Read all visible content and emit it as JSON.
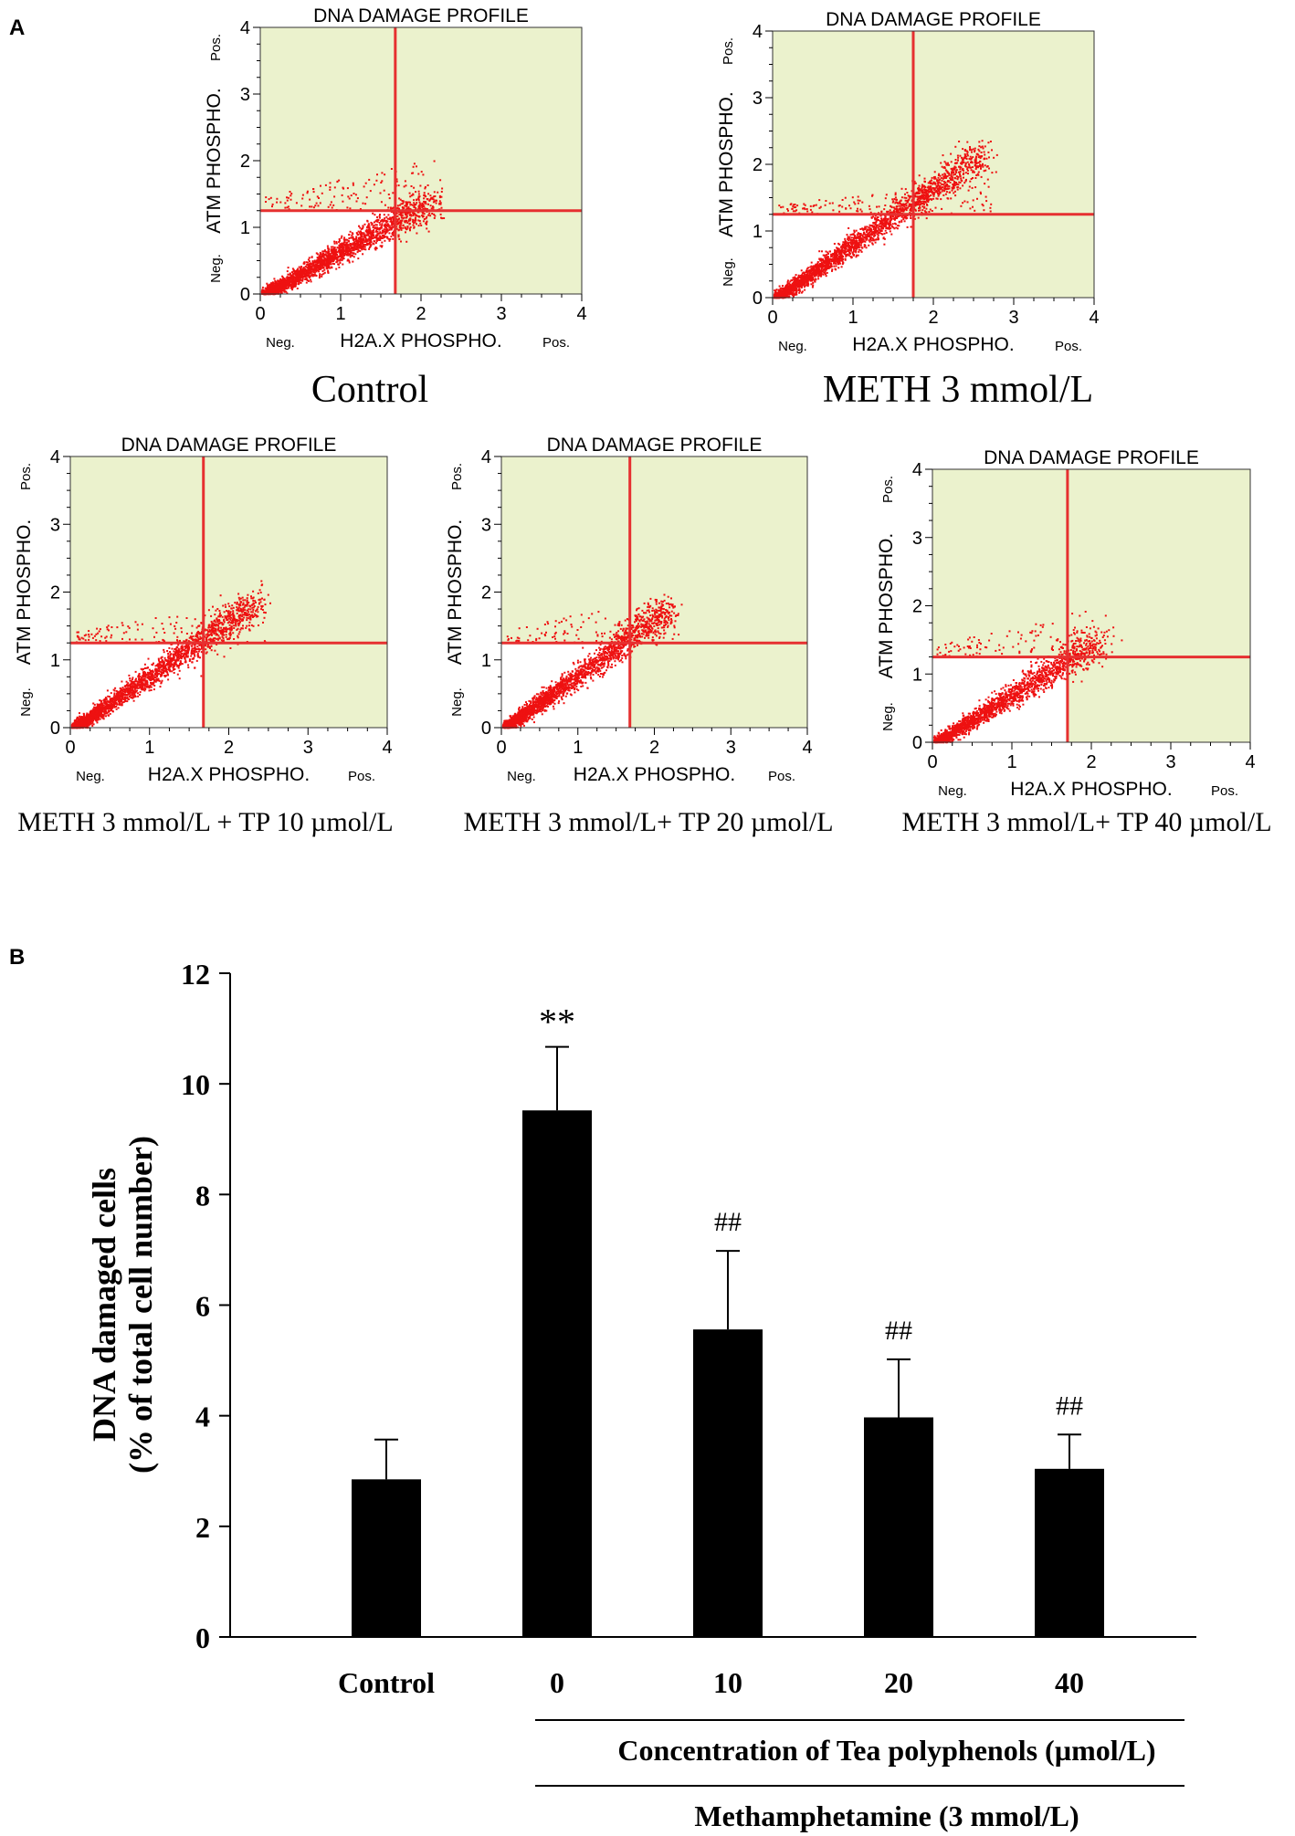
{
  "figure": {
    "panel_a_label": "A",
    "panel_b_label": "B"
  },
  "chart_data": [
    {
      "type": "scatter",
      "panel": "A",
      "title": "DNA DAMAGE PROFILE",
      "condition": "Control",
      "xlabel": "H2A.X PHOSPHO.",
      "ylabel": "ATM PHOSPHO.",
      "x_neg": "Neg.",
      "x_pos": "Pos.",
      "y_neg": "Neg.",
      "y_pos": "Pos.",
      "xlim": [
        0,
        4
      ],
      "ylim": [
        0,
        4
      ],
      "xticks": [
        "0",
        "1",
        "2",
        "3",
        "4"
      ],
      "yticks": [
        "0",
        "1",
        "2",
        "3",
        "4"
      ],
      "gate_x": 1.68,
      "gate_y": 1.25,
      "cloud_end": [
        2.1,
        1.4
      ],
      "upper_scatter": 0.6,
      "points": 2600,
      "colors": {
        "plot_bg": "#ebf2cd",
        "dots": "#ee1111",
        "gate": "#e63030"
      }
    },
    {
      "type": "scatter",
      "panel": "A",
      "title": "DNA DAMAGE PROFILE",
      "condition": "METH 3 mmol/L",
      "xlabel": "H2A.X PHOSPHO.",
      "ylabel": "ATM PHOSPHO.",
      "x_neg": "Neg.",
      "x_pos": "Pos.",
      "y_neg": "Neg.",
      "y_pos": "Pos.",
      "xlim": [
        0,
        4
      ],
      "ylim": [
        0,
        4
      ],
      "xticks": [
        "0",
        "1",
        "2",
        "3",
        "4"
      ],
      "yticks": [
        "0",
        "1",
        "2",
        "3",
        "4"
      ],
      "gate_x": 1.75,
      "gate_y": 1.25,
      "cloud_end": [
        2.55,
        2.15
      ],
      "upper_scatter": 0.4,
      "points": 2800,
      "colors": {
        "plot_bg": "#ebf2cd",
        "dots": "#ee1111",
        "gate": "#e63030"
      }
    },
    {
      "type": "scatter",
      "panel": "A",
      "title": "DNA DAMAGE PROFILE",
      "condition": "METH 3 mmol/L + TP 10 µmol/L",
      "xlabel": "H2A.X PHOSPHO.",
      "ylabel": "ATM PHOSPHO.",
      "x_neg": "Neg.",
      "x_pos": "Pos.",
      "y_neg": "Neg.",
      "y_pos": "Pos.",
      "xlim": [
        0,
        4
      ],
      "ylim": [
        0,
        4
      ],
      "xticks": [
        "0",
        "1",
        "2",
        "3",
        "4"
      ],
      "yticks": [
        "0",
        "1",
        "2",
        "3",
        "4"
      ],
      "gate_x": 1.68,
      "gate_y": 1.25,
      "cloud_end": [
        2.3,
        1.85
      ],
      "upper_scatter": 0.5,
      "points": 2400,
      "colors": {
        "plot_bg": "#ebf2cd",
        "dots": "#ee1111",
        "gate": "#e63030"
      }
    },
    {
      "type": "scatter",
      "panel": "A",
      "title": "DNA DAMAGE PROFILE",
      "condition": "METH 3 mmol/L+ TP 20 µmol/L",
      "xlabel": "H2A.X PHOSPHO.",
      "ylabel": "ATM PHOSPHO.",
      "x_neg": "Neg.",
      "x_pos": "Pos.",
      "y_neg": "Neg.",
      "y_pos": "Pos.",
      "xlim": [
        0,
        4
      ],
      "ylim": [
        0,
        4
      ],
      "xticks": [
        "0",
        "1",
        "2",
        "3",
        "4"
      ],
      "yticks": [
        "0",
        "1",
        "2",
        "3",
        "4"
      ],
      "gate_x": 1.68,
      "gate_y": 1.25,
      "cloud_end": [
        2.15,
        1.75
      ],
      "upper_scatter": 0.55,
      "points": 2300,
      "colors": {
        "plot_bg": "#ebf2cd",
        "dots": "#ee1111",
        "gate": "#e63030"
      }
    },
    {
      "type": "scatter",
      "panel": "A",
      "title": "DNA DAMAGE PROFILE",
      "condition": "METH 3 mmol/L+ TP 40 µmol/L",
      "xlabel": "H2A.X PHOSPHO.",
      "ylabel": "ATM PHOSPHO.",
      "x_neg": "Neg.",
      "x_pos": "Pos.",
      "y_neg": "Neg.",
      "y_pos": "Pos.",
      "xlim": [
        0,
        4
      ],
      "ylim": [
        0,
        4
      ],
      "xticks": [
        "0",
        "1",
        "2",
        "3",
        "4"
      ],
      "yticks": [
        "0",
        "1",
        "2",
        "3",
        "4"
      ],
      "gate_x": 1.7,
      "gate_y": 1.25,
      "cloud_end": [
        2.05,
        1.5
      ],
      "upper_scatter": 0.55,
      "points": 2100,
      "colors": {
        "plot_bg": "#ebf2cd",
        "dots": "#ee1111",
        "gate": "#e63030"
      }
    },
    {
      "type": "bar",
      "panel": "B",
      "categories": [
        "Control",
        "0",
        "10",
        "20",
        "40"
      ],
      "values": [
        2.85,
        9.52,
        5.56,
        3.97,
        3.04
      ],
      "errors": [
        0.72,
        1.15,
        1.42,
        1.05,
        0.62
      ],
      "annotations": [
        "",
        "**",
        "##",
        "##",
        "##"
      ],
      "ylabel_line1": "DNA damaged cells",
      "ylabel_line2": "(% of total cell number)",
      "ylim": [
        0,
        12
      ],
      "yticks": [
        "0",
        "2",
        "4",
        "6",
        "8",
        "10",
        "12"
      ],
      "group_label_1": "Concentration of Tea polyphenols (µmol/L)",
      "group_label_2": "Methamphetamine (3 mmol/L)",
      "colors": {
        "bar": "#000000"
      }
    }
  ]
}
